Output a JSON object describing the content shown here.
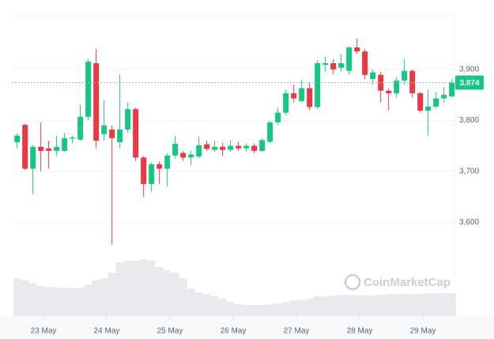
{
  "chart_data": {
    "type": "candlestick",
    "x": [
      0,
      3,
      6,
      9,
      12,
      15,
      18,
      21,
      24,
      27,
      30,
      33,
      36,
      39,
      42,
      45,
      48,
      51,
      54,
      57,
      60,
      63,
      66,
      69,
      72,
      75,
      78,
      81,
      84,
      87,
      90,
      93,
      96,
      99,
      102,
      105,
      108,
      111,
      114,
      117,
      120,
      123,
      126,
      129,
      132,
      135,
      138,
      141,
      144,
      147,
      150,
      153,
      156,
      159,
      162,
      165
    ],
    "open": [
      3757,
      3791,
      3705,
      3748,
      3745,
      3740,
      3740,
      3764,
      3762,
      3807,
      3912,
      3773,
      3782,
      3757,
      3782,
      3822,
      3727,
      3675,
      3714,
      3705,
      3731,
      3736,
      3727,
      3729,
      3753,
      3742,
      3748,
      3742,
      3750,
      3745,
      3750,
      3740,
      3758,
      3796,
      3815,
      3853,
      3838,
      3863,
      3826,
      3909,
      3912,
      3903,
      3897,
      3943,
      3935,
      3881,
      3889,
      3858,
      3853,
      3878,
      3897,
      3853,
      3819,
      3827,
      3843,
      3847
    ],
    "high": [
      3775,
      3793,
      3752,
      3796,
      3760,
      3770,
      3775,
      3770,
      3830,
      3920,
      3940,
      3840,
      3790,
      3890,
      3835,
      3825,
      3730,
      3718,
      3720,
      3735,
      3770,
      3740,
      3740,
      3768,
      3760,
      3760,
      3756,
      3760,
      3758,
      3755,
      3755,
      3765,
      3798,
      3825,
      3860,
      3870,
      3880,
      3875,
      3918,
      3925,
      3920,
      3930,
      3945,
      3960,
      3940,
      3900,
      3895,
      3862,
      3885,
      3920,
      3900,
      3856,
      3860,
      3855,
      3865,
      3880
    ],
    "low": [
      3745,
      3703,
      3655,
      3700,
      3705,
      3730,
      3738,
      3755,
      3760,
      3800,
      3745,
      3760,
      3556,
      3745,
      3775,
      3720,
      3650,
      3660,
      3675,
      3670,
      3725,
      3720,
      3712,
      3725,
      3740,
      3738,
      3730,
      3738,
      3740,
      3738,
      3735,
      3738,
      3755,
      3790,
      3810,
      3835,
      3835,
      3820,
      3822,
      3895,
      3890,
      3895,
      3890,
      3930,
      3880,
      3870,
      3835,
      3820,
      3845,
      3870,
      3845,
      3815,
      3770,
      3823,
      3835,
      3845
    ],
    "close": [
      3770,
      3705,
      3748,
      3740,
      3740,
      3748,
      3765,
      3766,
      3807,
      3915,
      3760,
      3790,
      3765,
      3782,
      3822,
      3727,
      3675,
      3714,
      3705,
      3731,
      3754,
      3727,
      3733,
      3751,
      3744,
      3748,
      3742,
      3750,
      3745,
      3750,
      3740,
      3761,
      3796,
      3815,
      3853,
      3843,
      3863,
      3826,
      3912,
      3912,
      3900,
      3912,
      3943,
      3935,
      3889,
      3894,
      3858,
      3853,
      3878,
      3897,
      3853,
      3819,
      3827,
      3843,
      3850,
      3874
    ],
    "volume": [
      48,
      45,
      42,
      38,
      37,
      36,
      36,
      35,
      36,
      40,
      45,
      48,
      55,
      68,
      70,
      70,
      72,
      70,
      62,
      58,
      55,
      48,
      35,
      30,
      28,
      25,
      22,
      18,
      15,
      14,
      14,
      14,
      15,
      16,
      18,
      20,
      20,
      22,
      25,
      25,
      26,
      27,
      27,
      26,
      26,
      26,
      27,
      28,
      28,
      28,
      28,
      28,
      29,
      29,
      29,
      29
    ],
    "volume_lim": [
      0,
      100
    ],
    "up_color": "#16c784",
    "down_color": "#ea3943",
    "volume_color": "#e9eaee",
    "xlim": [
      -2,
      166
    ],
    "xticks": [
      {
        "value": 10,
        "label": "23 May"
      },
      {
        "value": 34,
        "label": "24 May"
      },
      {
        "value": 58,
        "label": "25 May"
      },
      {
        "value": 82,
        "label": "26 May"
      },
      {
        "value": 106,
        "label": "27 May"
      },
      {
        "value": 130,
        "label": "28 May"
      },
      {
        "value": 154,
        "label": "29 May"
      }
    ],
    "ylim": [
      3416,
      4005
    ],
    "yticks": [
      {
        "value": 3600,
        "label": "3,600"
      },
      {
        "value": 3700,
        "label": "3,700"
      },
      {
        "value": 3800,
        "label": "3,800"
      },
      {
        "value": 3900,
        "label": "3,900"
      }
    ],
    "current_price": {
      "value": 3874,
      "label": "3,874"
    },
    "watermark": "CoinMarketCap",
    "grid": true
  }
}
